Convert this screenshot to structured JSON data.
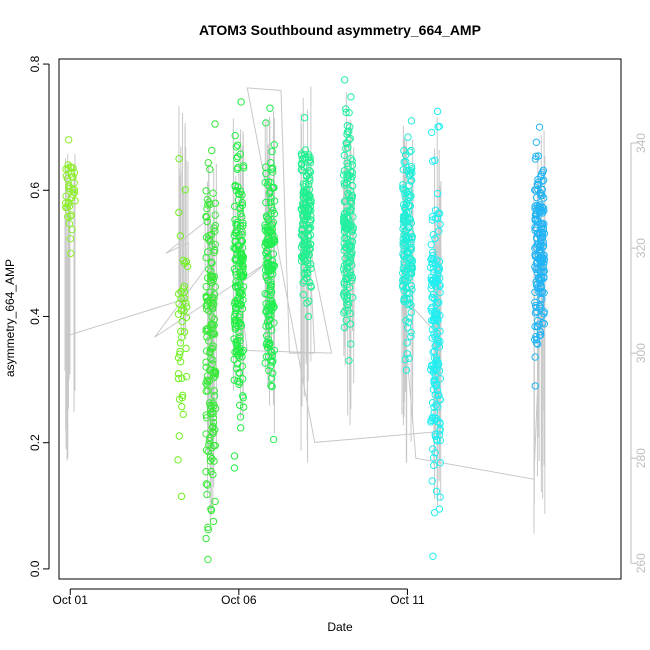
{
  "chart_data": {
    "type": "scatter",
    "title": "ATOM3 Southbound asymmetry_664_AMP",
    "xlabel": "Date",
    "ylabel": "asymmetry_664_AMP",
    "xlim": [
      "2023-09-30T16:00",
      "2023-10-17T08:00"
    ],
    "ylim": [
      -0.016,
      0.808
    ],
    "y_ticks": [
      0.0,
      0.2,
      0.4,
      0.6,
      0.8
    ],
    "x_ticks": [
      {
        "date": "2023-10-01",
        "label": "Oct 01"
      },
      {
        "date": "2023-10-06",
        "label": "Oct 06"
      },
      {
        "date": "2023-10-11",
        "label": "Oct 11"
      }
    ],
    "y2_lim": [
      257,
      356
    ],
    "y2_ticks": [
      260,
      280,
      300,
      320,
      340
    ],
    "grid": false,
    "legend": "none",
    "colors": {
      "gray_line": "#c8c8c8",
      "right_axis": "#bebebe"
    },
    "secondary_series": {
      "name": "",
      "color": "#c8c8c8",
      "points": [
        [
          "2023-10-01T00:00",
          303.5
        ],
        [
          "2023-10-04T12:00",
          310.5
        ],
        [
          "2023-10-04T12:00",
          321.0
        ],
        [
          "2023-10-03T20:00",
          319.0
        ],
        [
          "2023-10-05T00:00",
          325.0
        ],
        [
          "2023-10-05T00:00",
          316.0
        ],
        [
          "2023-10-03T12:00",
          303.0
        ],
        [
          "2023-10-07T00:00",
          318.0
        ],
        [
          "2023-10-06T00:00",
          313.0
        ],
        [
          "2023-10-06T06:00",
          300.5
        ],
        [
          "2023-10-08T18:00",
          300.0
        ],
        [
          "2023-10-08T02:00",
          321.0
        ],
        [
          "2023-10-08T06:00",
          300.0
        ],
        [
          "2023-10-07T12:00",
          300.0
        ],
        [
          "2023-10-07T06:00",
          350.0
        ],
        [
          "2023-10-06T06:00",
          350.5
        ],
        [
          "2023-10-08T06:00",
          283.0
        ],
        [
          "2023-10-11T20:00",
          285.0
        ],
        [
          "2023-10-11T20:00",
          304.0
        ],
        [
          "2023-10-10T20:00",
          311.0
        ],
        [
          "2023-10-11T06:00",
          280.0
        ],
        [
          "2023-10-14T18:00",
          276.0
        ],
        [
          "2023-10-15T00:00",
          316.0
        ]
      ]
    },
    "series": [
      {
        "name": "",
        "color": "#8cef2a",
        "x_center": "2023-10-01T00:00",
        "y_min": 0.5,
        "y_max": 0.68,
        "n": 38,
        "seed": 1,
        "range_hi": 0.675,
        "range_lo": 0.15
      },
      {
        "name": "",
        "color": "#72f022",
        "x_center": "2023-10-04T08:00",
        "y_min": 0.115,
        "y_max": 0.65,
        "n": 45,
        "seed": 2,
        "range_hi": 0.74,
        "range_lo": 0.35
      },
      {
        "name": "",
        "color": "#3ae83a",
        "x_center": "2023-10-05T04:00",
        "y_min": 0.015,
        "y_max": 0.705,
        "n": 160,
        "seed": 3,
        "range_hi": 0.7,
        "range_lo": 0.05
      },
      {
        "name": "",
        "color": "#22ee44",
        "x_center": "2023-10-06T00:00",
        "y_min": 0.16,
        "y_max": 0.74,
        "n": 170,
        "seed": 4,
        "range_hi": 0.74,
        "range_lo": 0.22
      },
      {
        "name": "",
        "color": "#22ee52",
        "x_center": "2023-10-06T22:00",
        "y_min": 0.205,
        "y_max": 0.73,
        "n": 170,
        "seed": 5,
        "range_hi": 0.73,
        "range_lo": 0.2
      },
      {
        "name": "",
        "color": "#22f090",
        "x_center": "2023-10-08T00:00",
        "y_min": 0.4,
        "y_max": 0.715,
        "n": 150,
        "seed": 6,
        "range_hi": 0.77,
        "range_lo": 0.16
      },
      {
        "name": "",
        "color": "#22f0a0",
        "x_center": "2023-10-09T06:00",
        "y_min": 0.33,
        "y_max": 0.775,
        "n": 150,
        "seed": 7,
        "range_hi": 0.77,
        "range_lo": 0.22
      },
      {
        "name": "",
        "color": "#22eed8",
        "x_center": "2023-10-11T00:00",
        "y_min": 0.315,
        "y_max": 0.71,
        "n": 160,
        "seed": 8,
        "range_hi": 0.72,
        "range_lo": 0.14
      },
      {
        "name": "",
        "color": "#22eef0",
        "x_center": "2023-10-11T20:00",
        "y_min": 0.02,
        "y_max": 0.725,
        "n": 170,
        "seed": 9,
        "range_hi": 0.72,
        "range_lo": 0.1
      },
      {
        "name": "",
        "color": "#22b4f5",
        "x_center": "2023-10-14T22:00",
        "y_min": 0.29,
        "y_max": 0.7,
        "n": 170,
        "seed": 10,
        "range_hi": 0.7,
        "range_lo": 0.03
      }
    ]
  }
}
